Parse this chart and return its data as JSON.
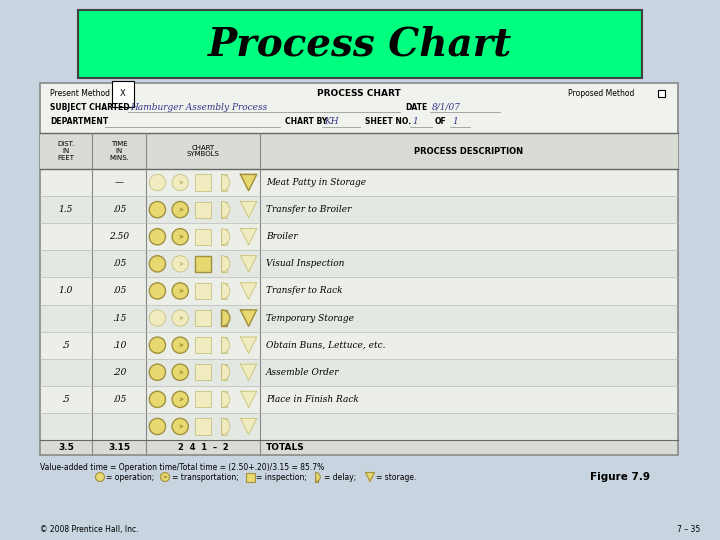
{
  "title": "Process Chart",
  "title_bg": "#00FF7F",
  "title_fontsize": 28,
  "bg_color": "#C8D4E0",
  "table_bg": "#F0F2EE",
  "header_row_bg": "#D8DCD4",
  "symbol_fill": "#E8D870",
  "symbol_fill_inactive": "#F0ECC0",
  "symbol_edge_active": "#A09040",
  "symbol_edge_inactive": "#C0B870",
  "rows": [
    {
      "dist": "",
      "time": "—",
      "active": [
        4
      ],
      "desc": "Meat Patty in Storage"
    },
    {
      "dist": "1.5",
      "time": ".05",
      "active": [
        0,
        1
      ],
      "desc": "Transfer to Broiler"
    },
    {
      "dist": "",
      "time": "2.50",
      "active": [
        0,
        1
      ],
      "desc": "Broiler"
    },
    {
      "dist": "",
      "time": ".05",
      "active": [
        0,
        2
      ],
      "desc": "Visual Inspection"
    },
    {
      "dist": "1.0",
      "time": ".05",
      "active": [
        0,
        1
      ],
      "desc": "Transfer to Rack"
    },
    {
      "dist": "",
      "time": ".15",
      "active": [
        3,
        4
      ],
      "desc": "Temporary Storage"
    },
    {
      "dist": ".5",
      "time": ".10",
      "active": [
        0,
        1
      ],
      "desc": "Obtain Buns, Lettuce, etc."
    },
    {
      "dist": "",
      "time": ".20",
      "active": [
        0,
        1
      ],
      "desc": "Assemble Order"
    },
    {
      "dist": ".5",
      "time": ".05",
      "active": [
        0,
        1
      ],
      "desc": "Place in Finish Rack"
    },
    {
      "dist": "",
      "time": "",
      "active": [
        0,
        1
      ],
      "desc": ""
    }
  ],
  "totals": {
    "dist": "3.5",
    "time": "3.15",
    "counts": "2  4  1  –  2",
    "label": "TOTALS"
  },
  "value_note": "Value-added time = Operation time/Total time = (2.50+.20)/3.15 = 85.7%",
  "copyright": "© 2008 Prentice Hall, Inc.",
  "figure_label": "Figure 7.9",
  "page_ref": "7 – 35"
}
